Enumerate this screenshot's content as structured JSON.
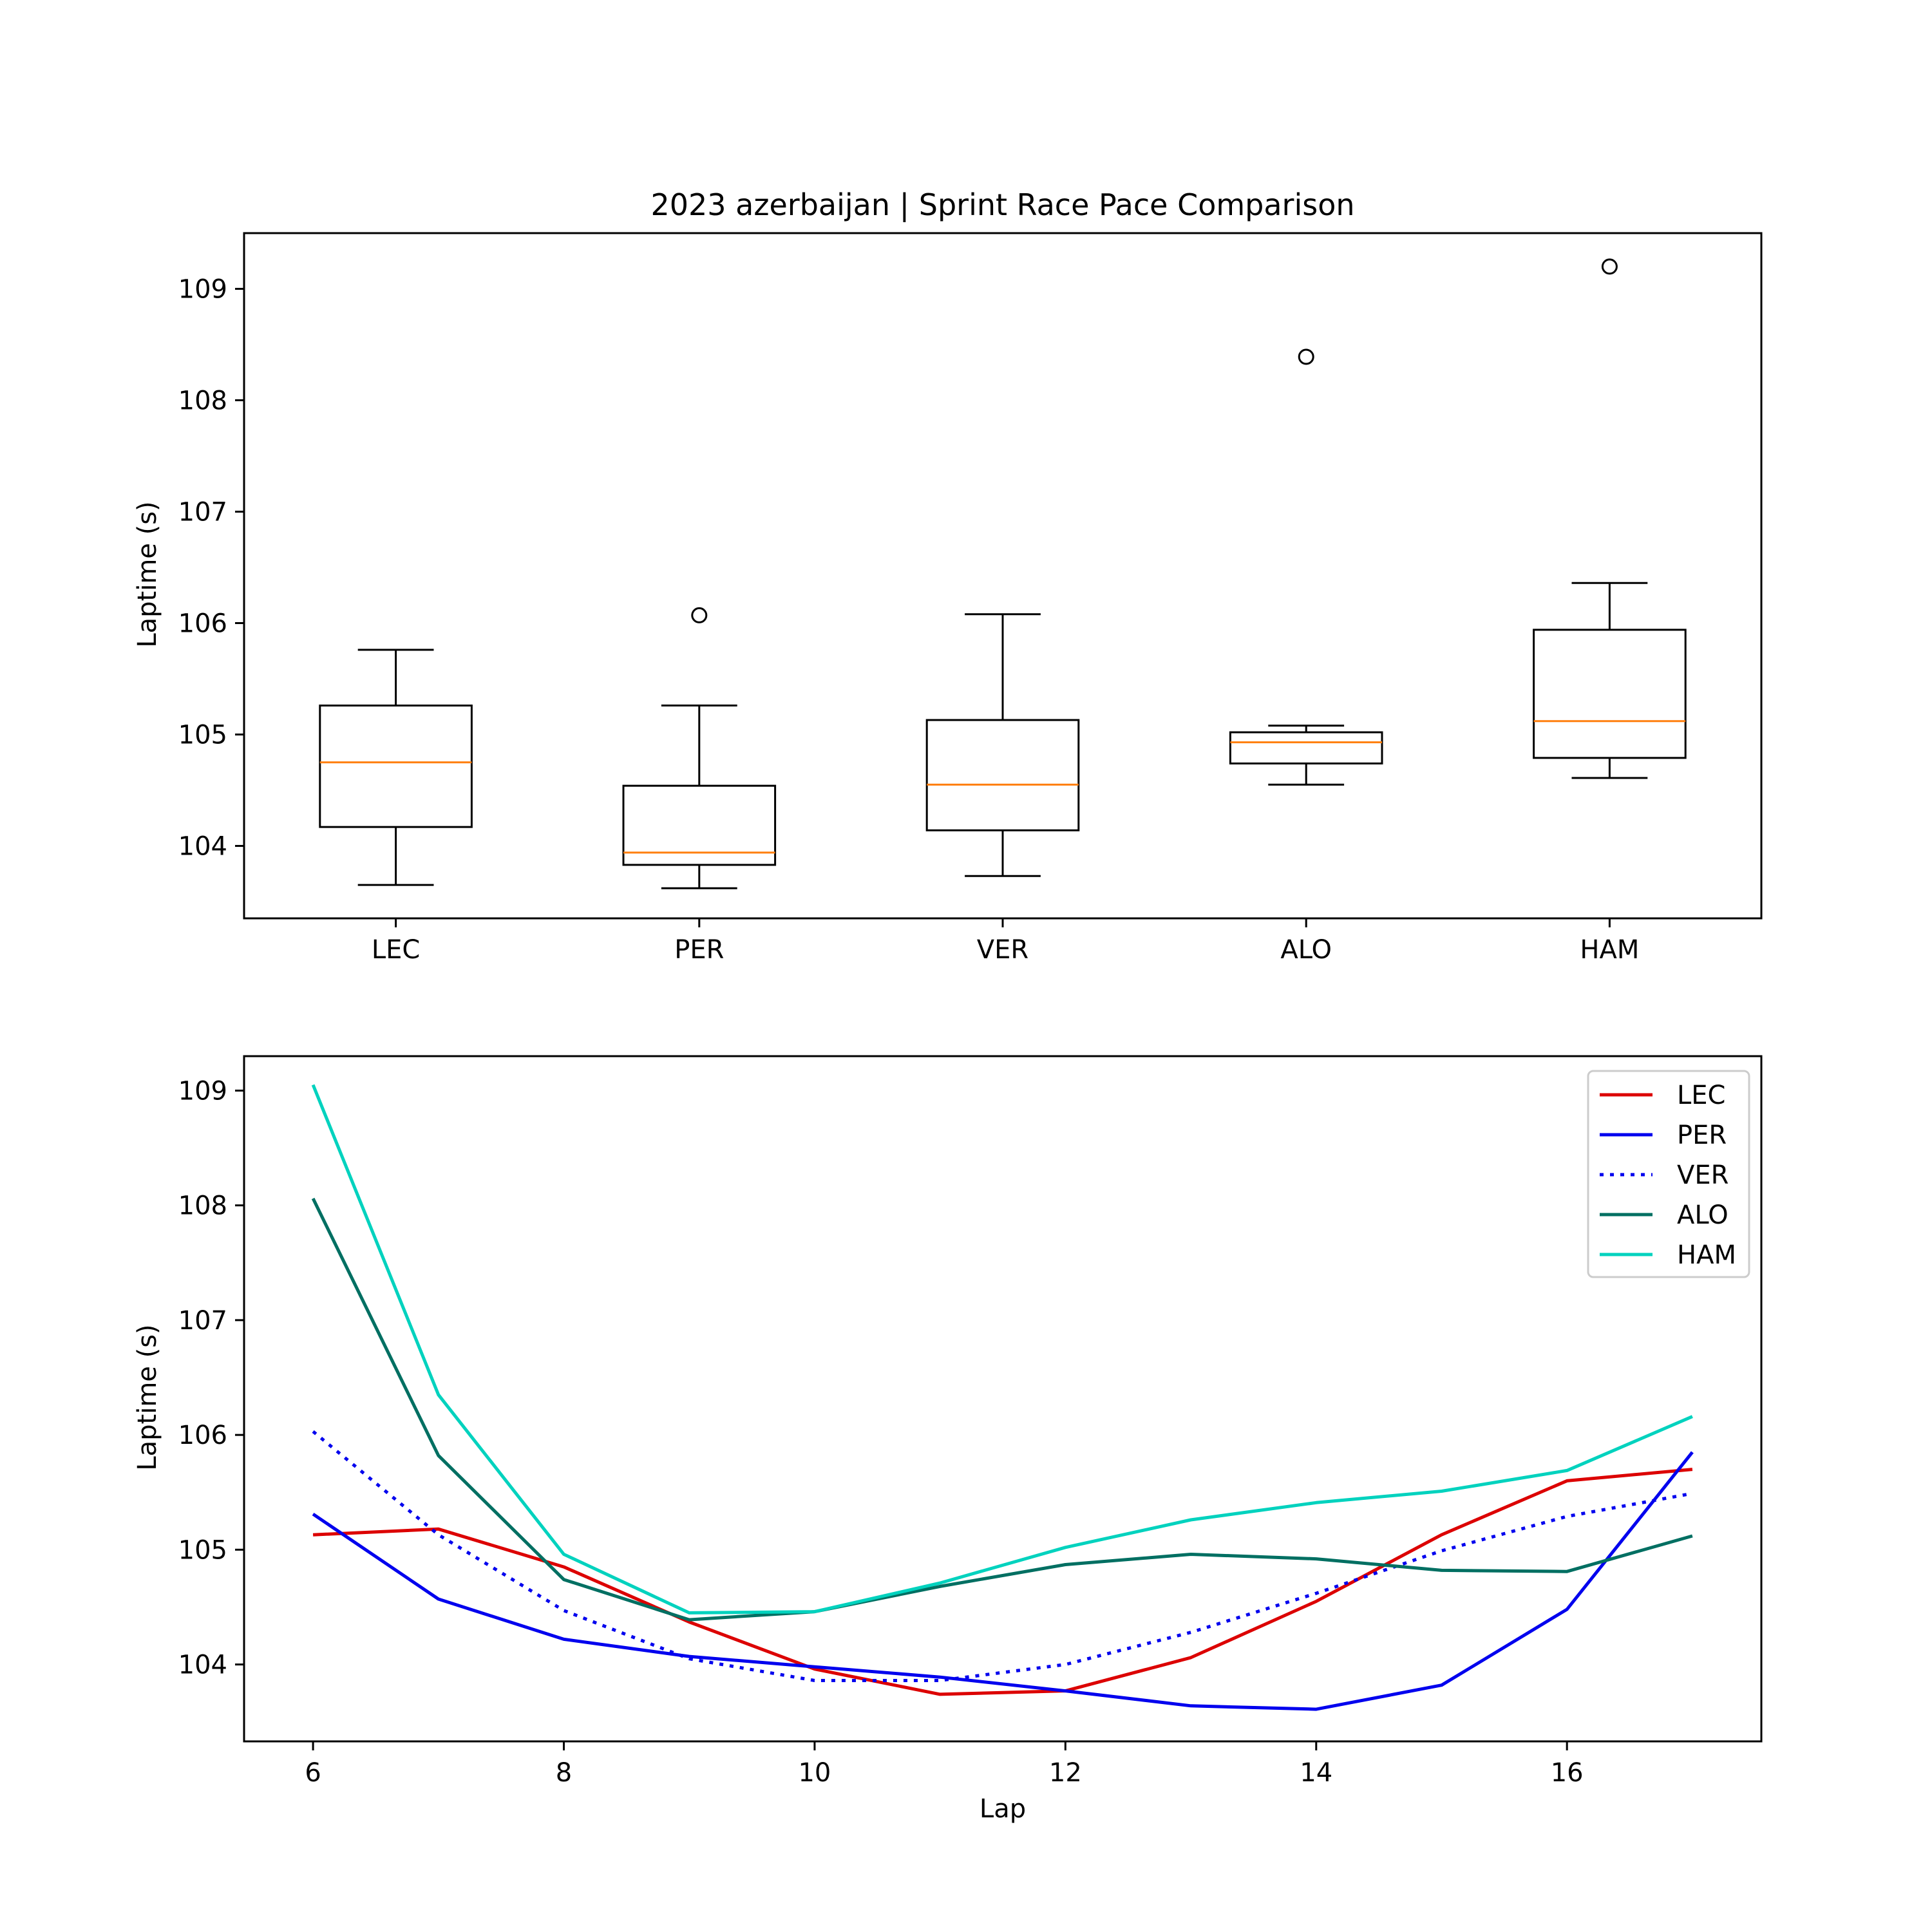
{
  "chart_data": [
    {
      "type": "box",
      "title": "2023 azerbaijan | Sprint Race Pace Comparison",
      "xlabel": "",
      "ylabel": "Laptime (s)",
      "ylim": [
        103.35,
        109.5
      ],
      "yticks": [
        104,
        105,
        106,
        107,
        108,
        109
      ],
      "categories": [
        "LEC",
        "PER",
        "VER",
        "ALO",
        "HAM"
      ],
      "boxes": [
        {
          "name": "LEC",
          "whisker_low": 103.65,
          "q1": 104.17,
          "median": 104.75,
          "q3": 105.26,
          "whisker_high": 105.76,
          "outliers": []
        },
        {
          "name": "PER",
          "whisker_low": 103.62,
          "q1": 103.83,
          "median": 103.94,
          "q3": 104.54,
          "whisker_high": 105.26,
          "outliers": [
            106.07
          ]
        },
        {
          "name": "VER",
          "whisker_low": 103.73,
          "q1": 104.14,
          "median": 104.55,
          "q3": 105.13,
          "whisker_high": 106.08,
          "outliers": []
        },
        {
          "name": "ALO",
          "whisker_low": 104.55,
          "q1": 104.74,
          "median": 104.93,
          "q3": 105.02,
          "whisker_high": 105.08,
          "outliers": [
            108.39
          ]
        },
        {
          "name": "HAM",
          "whisker_low": 104.61,
          "q1": 104.79,
          "median": 105.12,
          "q3": 105.94,
          "whisker_high": 106.36,
          "outliers": [
            109.2
          ]
        }
      ],
      "colors": {
        "box": "#000000",
        "median": "#ff7f0e"
      }
    },
    {
      "type": "line",
      "title": "",
      "xlabel": "Lap",
      "ylabel": "Laptime (s)",
      "xlim": [
        5.45,
        17.55
      ],
      "ylim": [
        103.33,
        109.3
      ],
      "xticks": [
        6,
        8,
        10,
        12,
        14,
        16
      ],
      "yticks": [
        104,
        105,
        106,
        107,
        108,
        109
      ],
      "legend": "top-right",
      "x": [
        6,
        7,
        8,
        9,
        10,
        11,
        12,
        13,
        14,
        15,
        16,
        17
      ],
      "series": [
        {
          "name": "LEC",
          "color": "#dc0000",
          "dash": "solid",
          "values": [
            105.13,
            105.18,
            104.85,
            104.37,
            103.96,
            103.74,
            103.77,
            104.06,
            104.55,
            105.13,
            105.6,
            105.7
          ]
        },
        {
          "name": "PER",
          "color": "#0000ee",
          "dash": "solid",
          "values": [
            105.31,
            104.57,
            104.22,
            104.07,
            103.98,
            103.89,
            103.77,
            103.64,
            103.61,
            103.82,
            104.48,
            105.85
          ]
        },
        {
          "name": "VER",
          "color": "#0000ee",
          "dash": "dotted",
          "values": [
            106.03,
            105.13,
            104.47,
            104.05,
            103.86,
            103.86,
            104.0,
            104.28,
            104.62,
            104.99,
            105.29,
            105.49
          ]
        },
        {
          "name": "ALO",
          "color": "#006f62",
          "dash": "solid",
          "values": [
            108.06,
            105.82,
            104.74,
            104.39,
            104.46,
            104.68,
            104.87,
            104.96,
            104.92,
            104.82,
            104.81,
            105.12
          ]
        },
        {
          "name": "HAM",
          "color": "#00d2be",
          "dash": "solid",
          "values": [
            109.05,
            106.35,
            104.96,
            104.45,
            104.46,
            104.71,
            105.02,
            105.26,
            105.41,
            105.51,
            105.69,
            106.16
          ]
        }
      ]
    }
  ]
}
